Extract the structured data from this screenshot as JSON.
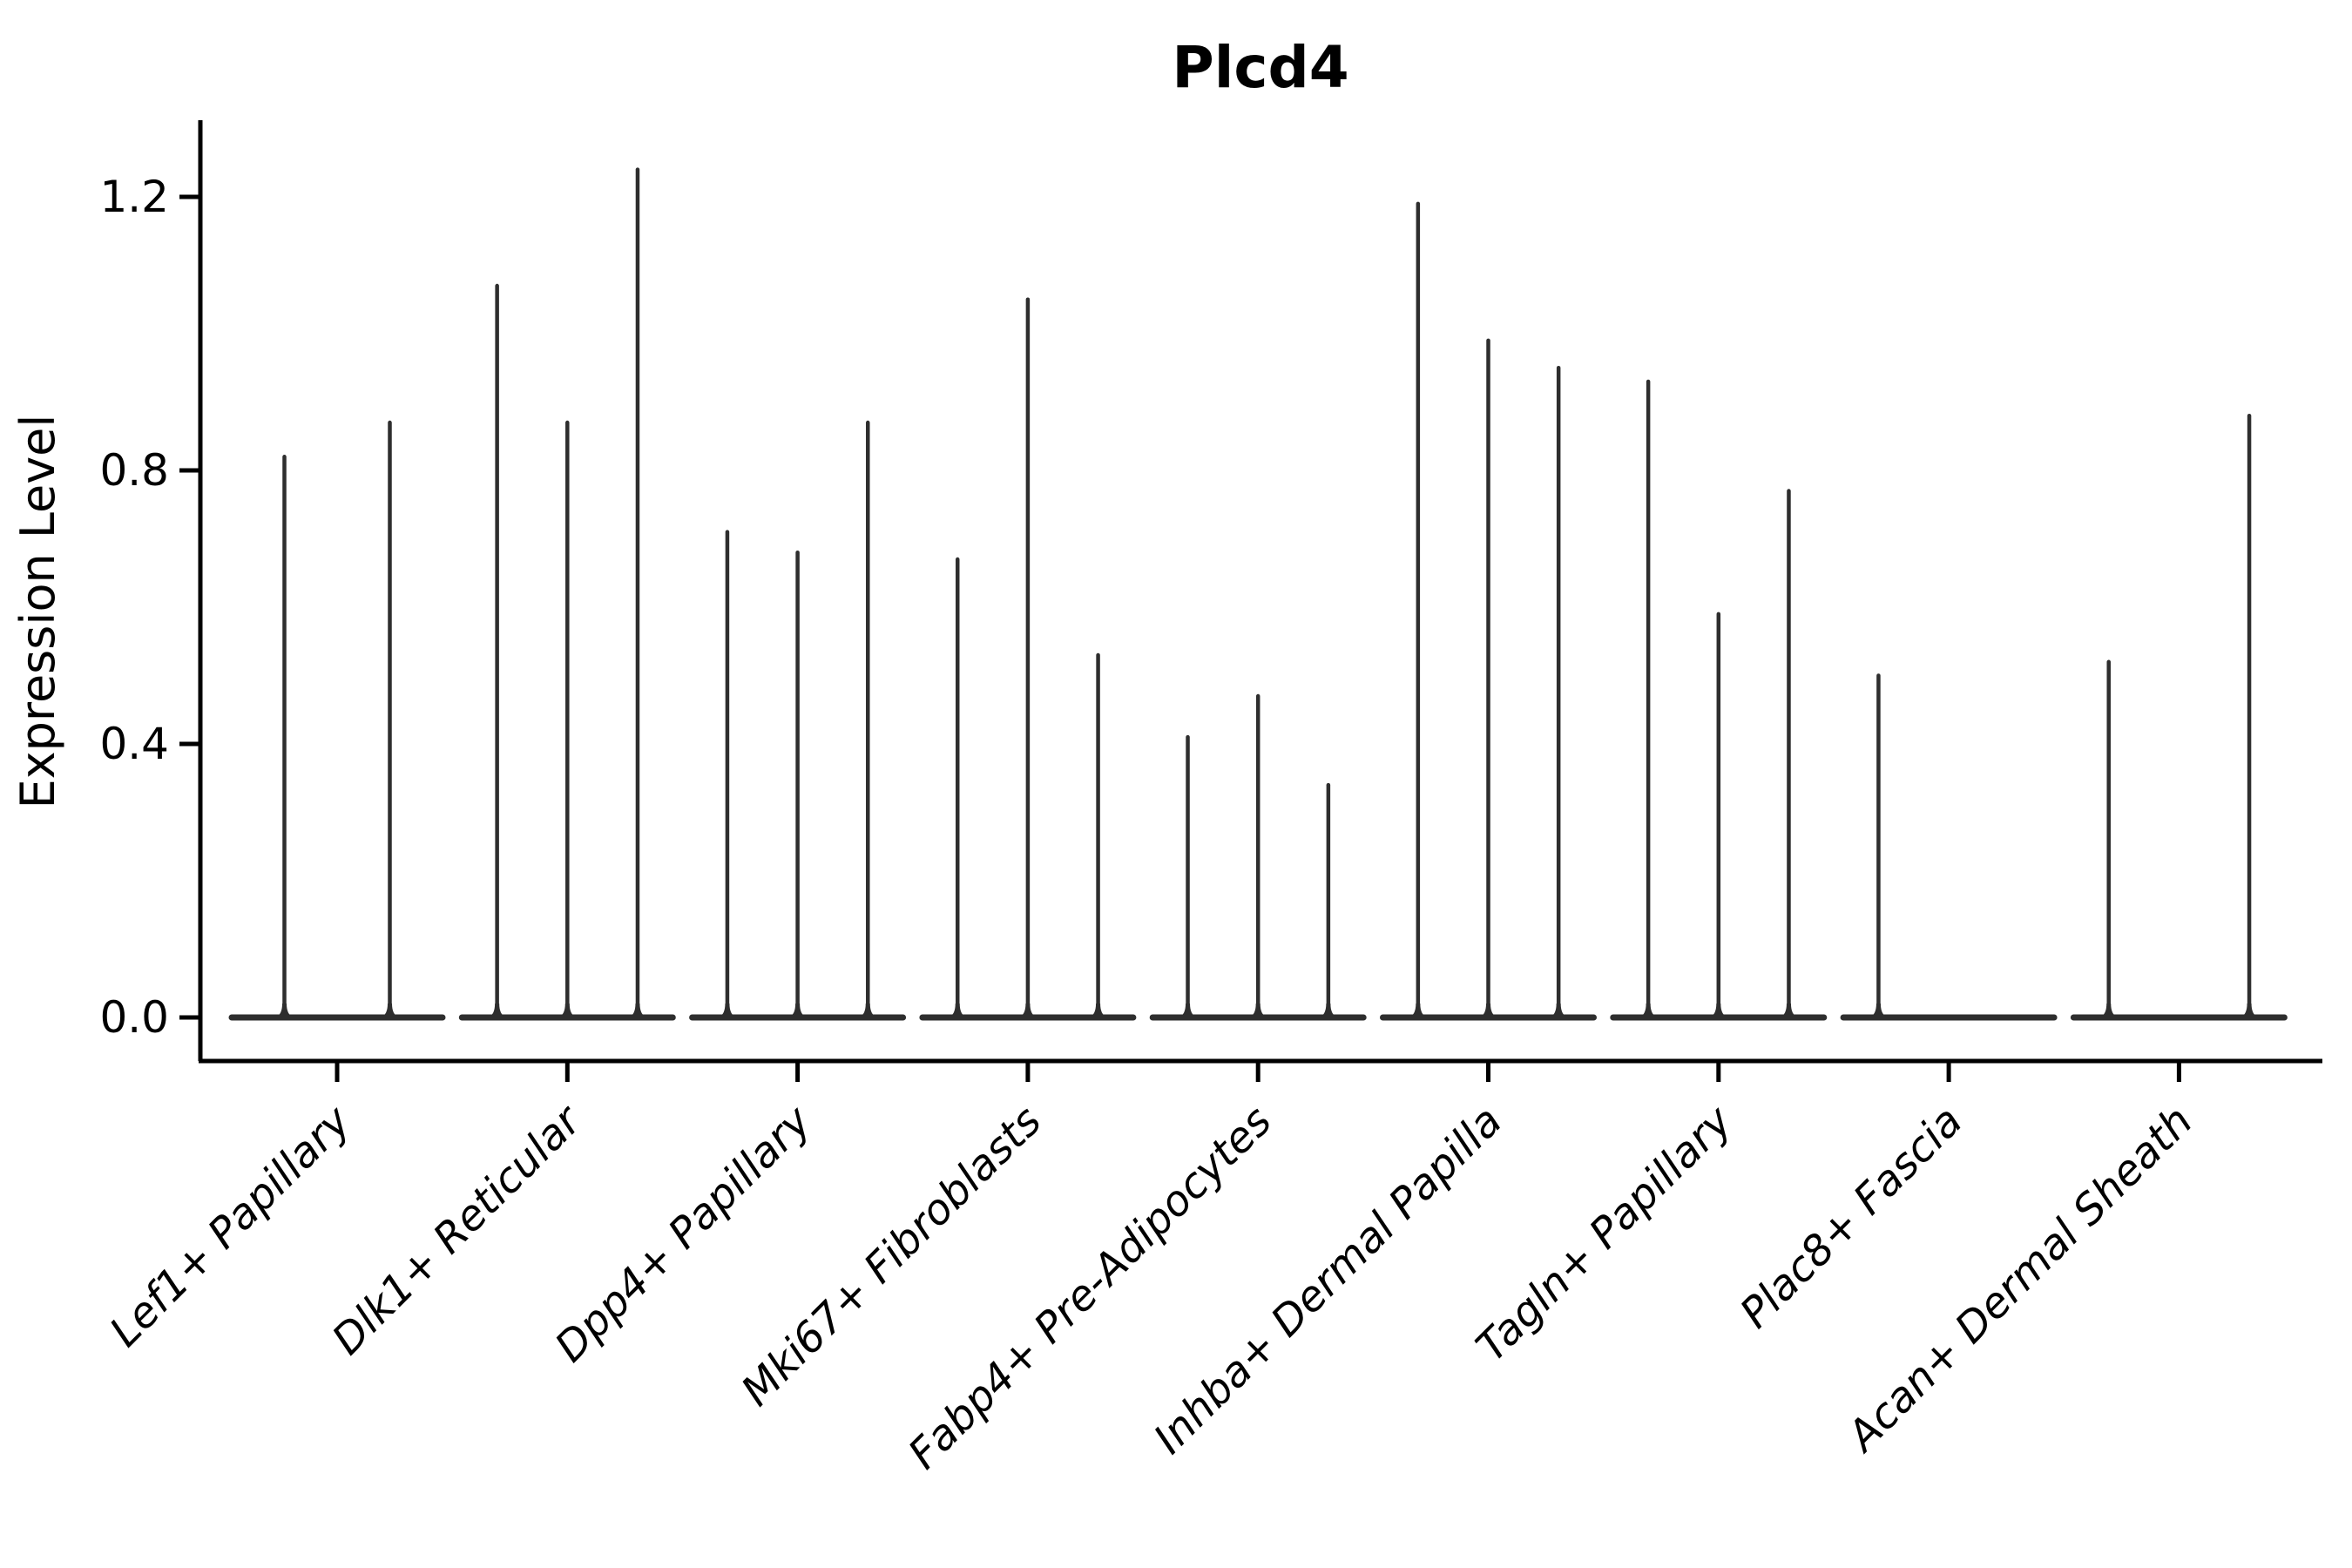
{
  "title": "Plcd4",
  "y_axis": {
    "label": "Expression Level",
    "tick_labels": [
      "0.0",
      "0.4",
      "0.8",
      "1.2"
    ],
    "tick_values": [
      0.0,
      0.4,
      0.8,
      1.2
    ]
  },
  "colors": {
    "violin_stroke": "#2e2e2e",
    "axis": "#000000",
    "background": "#ffffff"
  },
  "chart_data": {
    "type": "violin",
    "title": "Plcd4",
    "xlabel": "",
    "ylabel": "Expression Level",
    "ylim": [
      0,
      1.31
    ],
    "grid": false,
    "legend": "none",
    "note": "Single-cell expression violin plot; each cluster shows 2-3 dodged collapsed violins (thin spikes rising from flat zero-density bases). Values are spike maxima (max expression level).",
    "categories": [
      "Lef1+ Papillary",
      "Dlk1+ Reticular",
      "Dpp4+ Papillary",
      "Mki67+ Fibroblasts",
      "Fabp4+ Pre-Adipocytes",
      "Inhba+ Dermal Papilla",
      "Tagln+ Papillary",
      "Plac8+ Fascia",
      "Acan+ Dermal Sheath"
    ],
    "violin_max_values": [
      [
        0.82,
        0.87
      ],
      [
        1.07,
        0.87,
        1.24
      ],
      [
        0.71,
        0.68,
        0.87
      ],
      [
        0.67,
        1.05,
        0.53
      ],
      [
        0.41,
        0.47,
        0.34
      ],
      [
        1.19,
        0.99,
        0.95
      ],
      [
        0.93,
        0.59,
        0.77
      ],
      [
        0.5,
        0.0,
        0.0
      ],
      [
        0.52,
        0.0,
        0.88
      ]
    ]
  }
}
